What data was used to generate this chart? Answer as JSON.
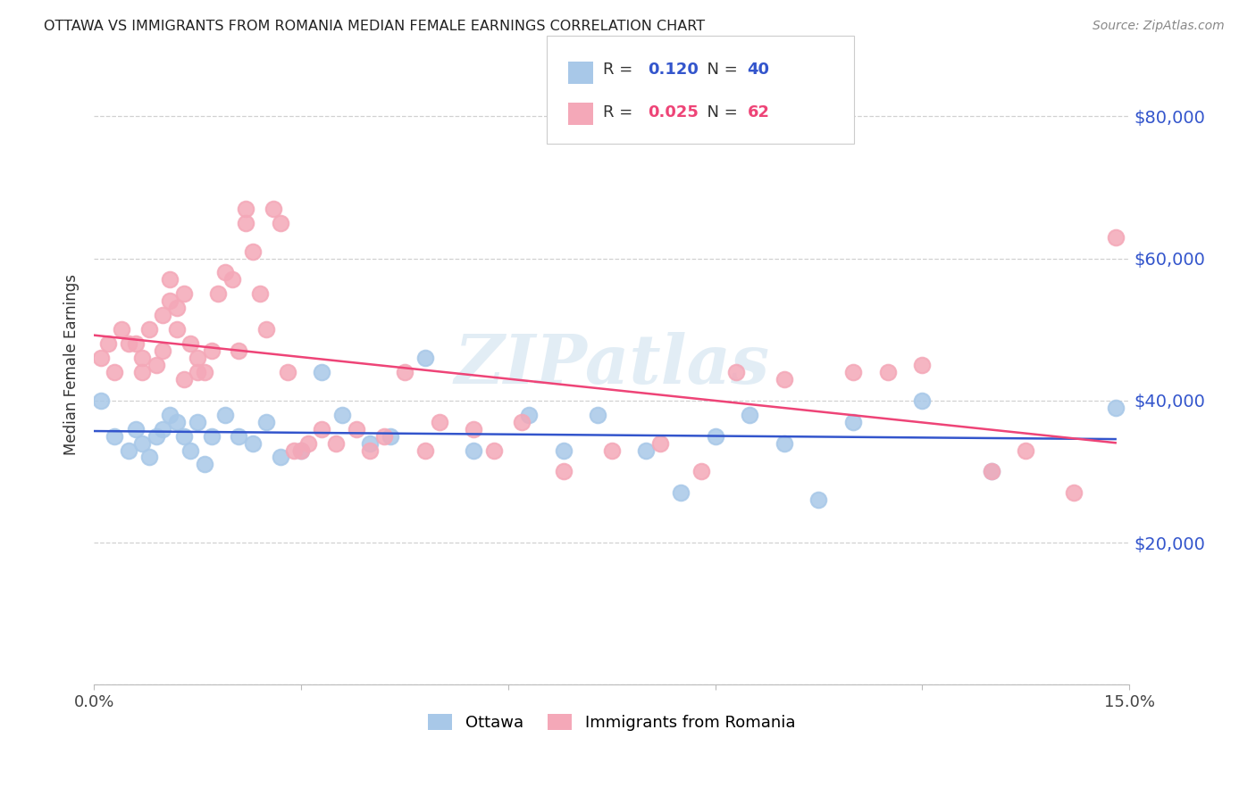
{
  "title": "OTTAWA VS IMMIGRANTS FROM ROMANIA MEDIAN FEMALE EARNINGS CORRELATION CHART",
  "source": "Source: ZipAtlas.com",
  "ylabel": "Median Female Earnings",
  "xlim": [
    0,
    0.15
  ],
  "ylim": [
    0,
    90000
  ],
  "yticks": [
    0,
    20000,
    40000,
    60000,
    80000
  ],
  "xticks": [
    0.0,
    0.03,
    0.06,
    0.09,
    0.12,
    0.15
  ],
  "xtick_labels": [
    "0.0%",
    "",
    "",
    "",
    "",
    "15.0%"
  ],
  "ottawa_color": "#A8C8E8",
  "romania_color": "#F4A8B8",
  "ottawa_line_color": "#3355CC",
  "romania_line_color": "#EE4477",
  "ytick_color": "#3355CC",
  "ottawa_R": 0.12,
  "ottawa_N": 40,
  "romania_R": 0.025,
  "romania_N": 62,
  "legend_label_1": "Ottawa",
  "legend_label_2": "Immigrants from Romania",
  "watermark": "ZIPatlas",
  "ottawa_x": [
    0.001,
    0.003,
    0.005,
    0.006,
    0.007,
    0.008,
    0.009,
    0.01,
    0.011,
    0.012,
    0.013,
    0.014,
    0.015,
    0.016,
    0.017,
    0.019,
    0.021,
    0.023,
    0.025,
    0.027,
    0.03,
    0.033,
    0.036,
    0.04,
    0.043,
    0.048,
    0.055,
    0.063,
    0.068,
    0.073,
    0.08,
    0.085,
    0.09,
    0.095,
    0.1,
    0.105,
    0.11,
    0.12,
    0.13,
    0.148
  ],
  "ottawa_y": [
    40000,
    35000,
    33000,
    36000,
    34000,
    32000,
    35000,
    36000,
    38000,
    37000,
    35000,
    33000,
    37000,
    31000,
    35000,
    38000,
    35000,
    34000,
    37000,
    32000,
    33000,
    44000,
    38000,
    34000,
    35000,
    46000,
    33000,
    38000,
    33000,
    38000,
    33000,
    27000,
    35000,
    38000,
    34000,
    26000,
    37000,
    40000,
    30000,
    39000
  ],
  "romania_x": [
    0.001,
    0.002,
    0.003,
    0.004,
    0.005,
    0.006,
    0.007,
    0.007,
    0.008,
    0.009,
    0.01,
    0.01,
    0.011,
    0.011,
    0.012,
    0.012,
    0.013,
    0.013,
    0.014,
    0.015,
    0.015,
    0.016,
    0.017,
    0.018,
    0.019,
    0.02,
    0.021,
    0.022,
    0.022,
    0.023,
    0.024,
    0.025,
    0.026,
    0.027,
    0.028,
    0.029,
    0.03,
    0.031,
    0.033,
    0.035,
    0.038,
    0.04,
    0.042,
    0.045,
    0.048,
    0.05,
    0.055,
    0.058,
    0.062,
    0.068,
    0.075,
    0.082,
    0.088,
    0.093,
    0.1,
    0.11,
    0.115,
    0.12,
    0.13,
    0.135,
    0.142,
    0.148
  ],
  "romania_y": [
    46000,
    48000,
    44000,
    50000,
    48000,
    48000,
    46000,
    44000,
    50000,
    45000,
    47000,
    52000,
    54000,
    57000,
    50000,
    53000,
    55000,
    43000,
    48000,
    46000,
    44000,
    44000,
    47000,
    55000,
    58000,
    57000,
    47000,
    67000,
    65000,
    61000,
    55000,
    50000,
    67000,
    65000,
    44000,
    33000,
    33000,
    34000,
    36000,
    34000,
    36000,
    33000,
    35000,
    44000,
    33000,
    37000,
    36000,
    33000,
    37000,
    30000,
    33000,
    34000,
    30000,
    44000,
    43000,
    44000,
    44000,
    45000,
    30000,
    33000,
    27000,
    63000
  ]
}
